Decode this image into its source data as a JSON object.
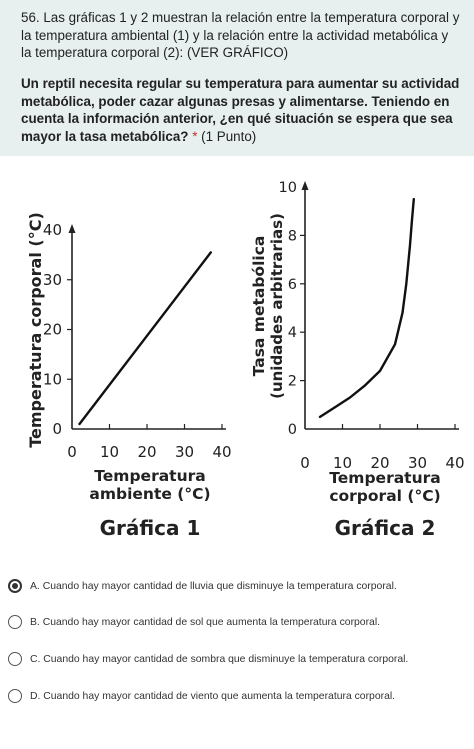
{
  "question": {
    "intro": "56. Las gráficas 1 y 2 muestran la relación entre la temperatura corporal y la temperatura ambiental (1) y la relación entre la actividad metabólica y la temperatura corporal (2): (VER GRÁFICO)",
    "prompt": "Un reptil necesita regular su temperatura para aumentar su actividad metabólica, poder cazar algunas presas y alimentarse. Teniendo en cuenta la información anterior, ¿en qué situación se espera que sea mayor la tasa metabólica?",
    "required_marker": "*",
    "points": "(1 Punto)"
  },
  "chart_data": [
    {
      "type": "line",
      "title": "Gráfica 1",
      "xlabel": "Temperatura ambiente (°C)",
      "ylabel": "Temperatura corporal (°C)",
      "xlim": [
        0,
        40
      ],
      "ylim": [
        0,
        40
      ],
      "x_ticks": [
        "0",
        "10",
        "20",
        "30",
        "40"
      ],
      "y_ticks": [
        "0",
        "10",
        "20",
        "30",
        "40"
      ],
      "x": [
        2,
        37
      ],
      "y": [
        1,
        35.5
      ],
      "grid": false
    },
    {
      "type": "line",
      "title": "Gráfica 2",
      "xlabel": "Temperatura corporal (°C)",
      "ylabel": "Tasa metabólica (unidades arbitrarias)",
      "xlim": [
        0,
        40
      ],
      "ylim": [
        0,
        10
      ],
      "x_ticks": [
        "0",
        "10",
        "20",
        "30",
        "40"
      ],
      "y_ticks": [
        "0",
        "2",
        "4",
        "6",
        "8",
        "10"
      ],
      "x": [
        4,
        8,
        12,
        16,
        20,
        24,
        26,
        27,
        28,
        28.5,
        29
      ],
      "y": [
        0.5,
        0.9,
        1.3,
        1.8,
        2.4,
        3.5,
        4.8,
        6.0,
        7.6,
        8.6,
        9.5
      ],
      "grid": false
    }
  ],
  "options": [
    {
      "label": "A. Cuando hay mayor cantidad de lluvia que disminuye la temperatura corporal.",
      "selected": true
    },
    {
      "label": "B. Cuando hay mayor cantidad de sol que aumenta la temperatura corporal.",
      "selected": false
    },
    {
      "label": "C. Cuando hay mayor cantidad de sombra que disminuye la temperatura corporal.",
      "selected": false
    },
    {
      "label": "D. Cuando hay mayor cantidad de viento que aumenta la temperatura corporal.",
      "selected": false
    }
  ]
}
